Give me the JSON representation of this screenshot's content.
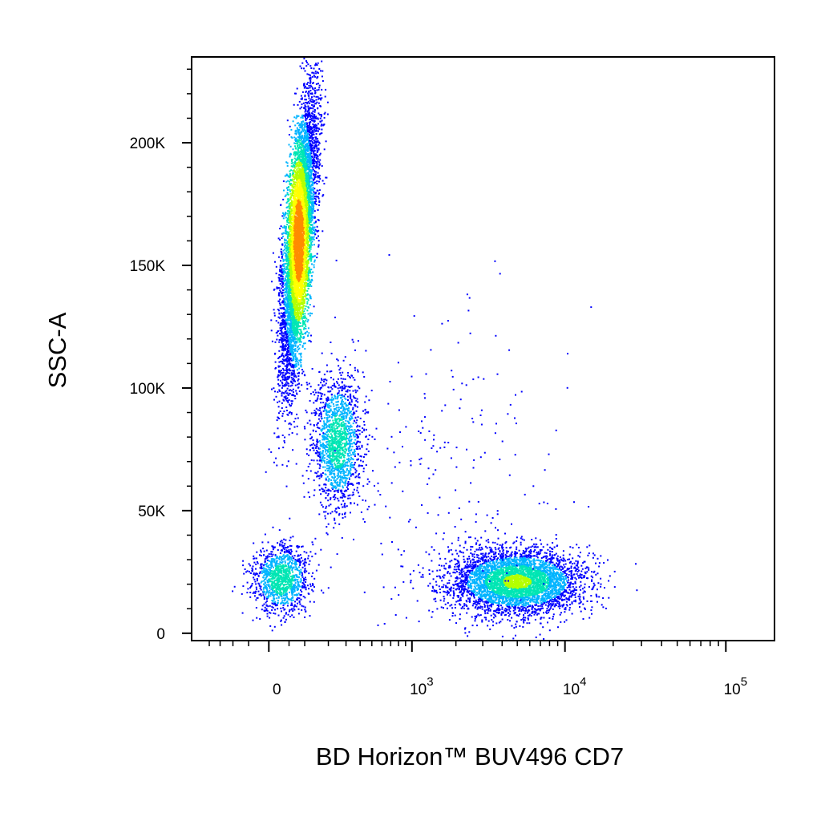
{
  "chart_data": {
    "type": "scatter",
    "title": "",
    "xlabel": "BD Horizon™ BUV496 CD7",
    "ylabel": "SSC-A",
    "x_scale": "biexponential",
    "y_scale": "linear",
    "xlim": [
      -300,
      200000
    ],
    "ylim": [
      -3000,
      235000
    ],
    "grid": false,
    "legend": "none",
    "density_colormap": [
      "#0000ff",
      "#00b4ff",
      "#00e6b4",
      "#b4ff00",
      "#ffff00",
      "#ff8c00",
      "#ff0000"
    ],
    "x_ticks": [
      {
        "value": 0,
        "label": "0",
        "sup": ""
      },
      {
        "value": 1000,
        "label": "10",
        "sup": "3"
      },
      {
        "value": 10000,
        "label": "10",
        "sup": "4"
      },
      {
        "value": 100000,
        "label": "10",
        "sup": "5"
      }
    ],
    "y_ticks": [
      {
        "value": 0,
        "label": "0"
      },
      {
        "value": 50000,
        "label": "50K"
      },
      {
        "value": 100000,
        "label": "100K"
      },
      {
        "value": 150000,
        "label": "150K"
      },
      {
        "value": 200000,
        "label": "200K"
      }
    ],
    "populations": [
      {
        "name": "",
        "cx": 80,
        "cy": 160000,
        "sx": 30,
        "sy": 28000,
        "rho": 0.6,
        "count": 7000,
        "peak": 1.0
      },
      {
        "name": "",
        "cx": 250,
        "cy": 78000,
        "sx": 80,
        "sy": 14000,
        "rho": 0.0,
        "count": 1600,
        "peak": 0.45
      },
      {
        "name": "",
        "cx": 5000,
        "cy": 21000,
        "sx": 3000,
        "sy": 6500,
        "rho": 0.0,
        "count": 4500,
        "peak": 0.55
      },
      {
        "name": "",
        "cx": 30,
        "cy": 22000,
        "sx": 40,
        "sy": 7000,
        "rho": 0.0,
        "count": 1200,
        "peak": 0.5
      },
      {
        "name": "",
        "cx": 2000,
        "cy": 60000,
        "sx": 2500,
        "sy": 40000,
        "rho": 0.0,
        "count": 250,
        "peak": 0.0
      }
    ]
  }
}
